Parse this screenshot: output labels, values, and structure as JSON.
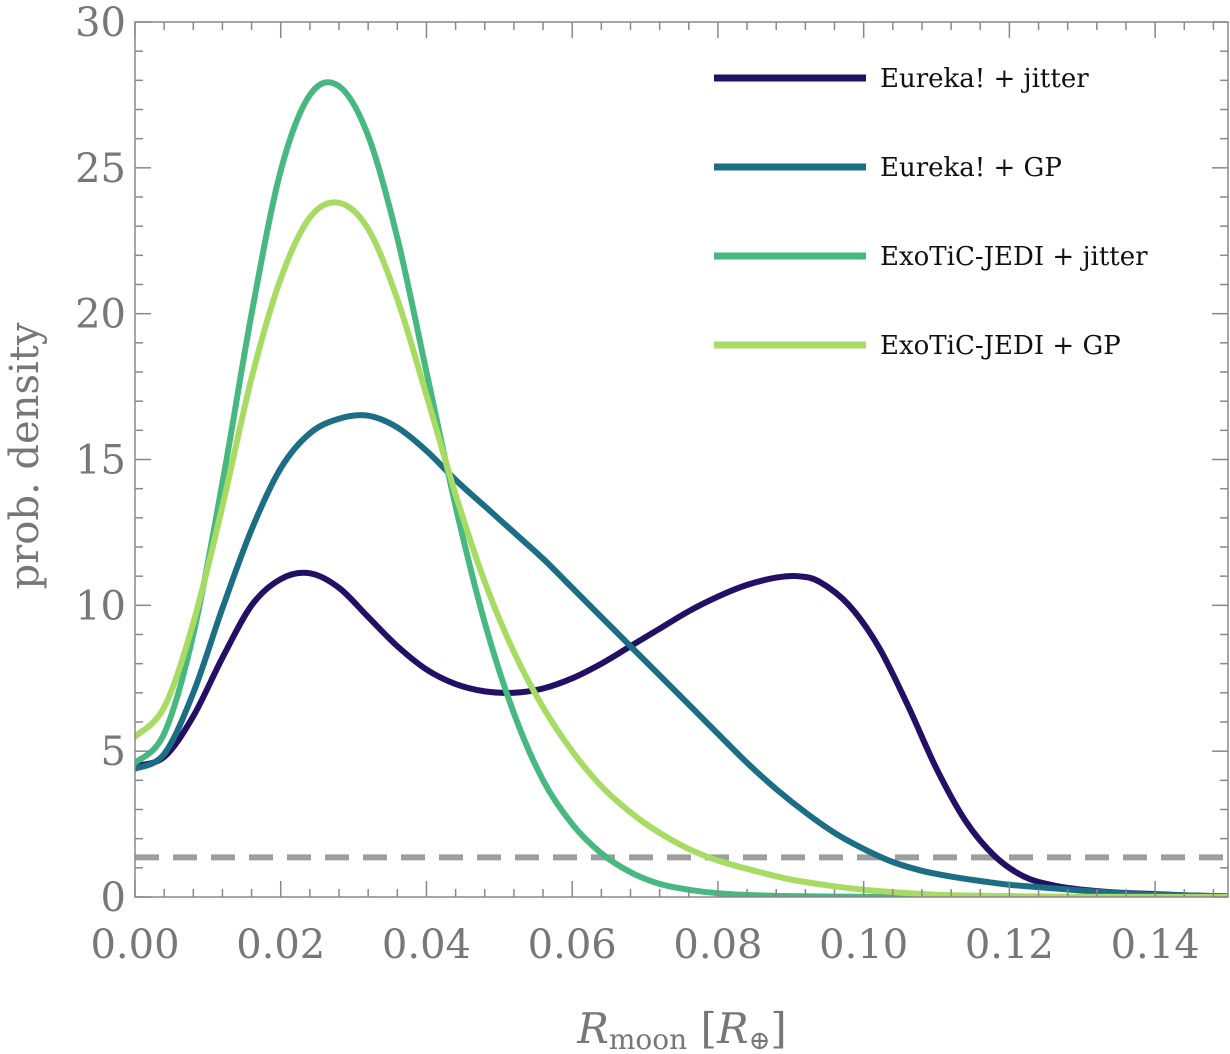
{
  "chart_data": {
    "type": "line",
    "xlabel_main": "R",
    "xlabel_sub": "moon",
    "xlabel_unit_open": " [",
    "xlabel_unit_main": "R",
    "xlabel_unit_sub": "⊕",
    "xlabel_unit_close": "]",
    "ylabel": "prob. density",
    "xlim": [
      0,
      0.15
    ],
    "ylim": [
      0,
      30
    ],
    "xticks": [
      "0.00",
      "0.02",
      "0.04",
      "0.06",
      "0.08",
      "0.10",
      "0.12",
      "0.14"
    ],
    "yticks": [
      "0",
      "5",
      "10",
      "15",
      "20",
      "25",
      "30"
    ],
    "legend_position": "top-right",
    "reference_line": {
      "y": 1.36,
      "style": "dashed",
      "color": "#9e9e9e"
    },
    "series": [
      {
        "name": "Eureka! + jitter",
        "color": "#230f63",
        "x": [
          0,
          0.004,
          0.008,
          0.012,
          0.016,
          0.02,
          0.024,
          0.028,
          0.032,
          0.036,
          0.04,
          0.044,
          0.048,
          0.052,
          0.056,
          0.06,
          0.064,
          0.068,
          0.072,
          0.076,
          0.08,
          0.084,
          0.088,
          0.091,
          0.094,
          0.098,
          0.102,
          0.106,
          0.11,
          0.114,
          0.118,
          0.122,
          0.126,
          0.13,
          0.135,
          0.14,
          0.145,
          0.15
        ],
        "y": [
          4.5,
          4.8,
          6.2,
          8.2,
          10.0,
          10.9,
          11.1,
          10.6,
          9.6,
          8.6,
          7.8,
          7.3,
          7.05,
          7.0,
          7.15,
          7.5,
          8.0,
          8.6,
          9.2,
          9.8,
          10.3,
          10.7,
          10.95,
          11.0,
          10.8,
          10.0,
          8.6,
          6.6,
          4.4,
          2.6,
          1.4,
          0.7,
          0.4,
          0.25,
          0.15,
          0.1,
          0.05,
          0.02
        ]
      },
      {
        "name": "Eureka! + GP",
        "color": "#1c6e85",
        "x": [
          0,
          0.004,
          0.008,
          0.012,
          0.016,
          0.02,
          0.024,
          0.028,
          0.032,
          0.036,
          0.04,
          0.044,
          0.048,
          0.052,
          0.056,
          0.06,
          0.064,
          0.068,
          0.072,
          0.076,
          0.08,
          0.084,
          0.088,
          0.092,
          0.096,
          0.1,
          0.104,
          0.108,
          0.112,
          0.116,
          0.12,
          0.125,
          0.13,
          0.135,
          0.14,
          0.15
        ],
        "y": [
          4.4,
          4.9,
          7.0,
          9.9,
          12.6,
          14.7,
          15.9,
          16.4,
          16.5,
          16.1,
          15.3,
          14.3,
          13.4,
          12.5,
          11.6,
          10.6,
          9.6,
          8.6,
          7.6,
          6.6,
          5.6,
          4.6,
          3.7,
          2.9,
          2.2,
          1.65,
          1.2,
          0.9,
          0.7,
          0.55,
          0.42,
          0.32,
          0.22,
          0.14,
          0.08,
          0.02
        ]
      },
      {
        "name": "ExoTiC-JEDI + jitter",
        "color": "#46b880",
        "x": [
          0,
          0.004,
          0.008,
          0.012,
          0.016,
          0.02,
          0.024,
          0.028,
          0.032,
          0.036,
          0.04,
          0.044,
          0.048,
          0.052,
          0.056,
          0.06,
          0.064,
          0.068,
          0.072,
          0.076,
          0.08,
          0.085,
          0.09,
          0.1,
          0.11,
          0.12,
          0.15
        ],
        "y": [
          4.6,
          5.6,
          9.0,
          14.2,
          20.0,
          24.9,
          27.5,
          27.8,
          26.1,
          22.6,
          18.0,
          13.4,
          9.4,
          6.3,
          4.0,
          2.5,
          1.5,
          0.85,
          0.45,
          0.25,
          0.13,
          0.06,
          0.03,
          0.01,
          0.0,
          0.0,
          0.0
        ]
      },
      {
        "name": "ExoTiC-JEDI + GP",
        "color": "#a7db63",
        "x": [
          0,
          0.004,
          0.008,
          0.012,
          0.016,
          0.02,
          0.024,
          0.028,
          0.032,
          0.036,
          0.04,
          0.044,
          0.048,
          0.052,
          0.056,
          0.06,
          0.064,
          0.068,
          0.072,
          0.076,
          0.08,
          0.085,
          0.09,
          0.095,
          0.1,
          0.105,
          0.11,
          0.12,
          0.13,
          0.15
        ],
        "y": [
          5.5,
          6.5,
          9.4,
          13.4,
          17.8,
          21.2,
          23.3,
          23.8,
          22.9,
          20.5,
          17.2,
          13.8,
          10.8,
          8.4,
          6.5,
          5.0,
          3.8,
          2.9,
          2.2,
          1.65,
          1.25,
          0.9,
          0.6,
          0.4,
          0.25,
          0.15,
          0.08,
          0.03,
          0.01,
          0.0
        ]
      }
    ]
  }
}
